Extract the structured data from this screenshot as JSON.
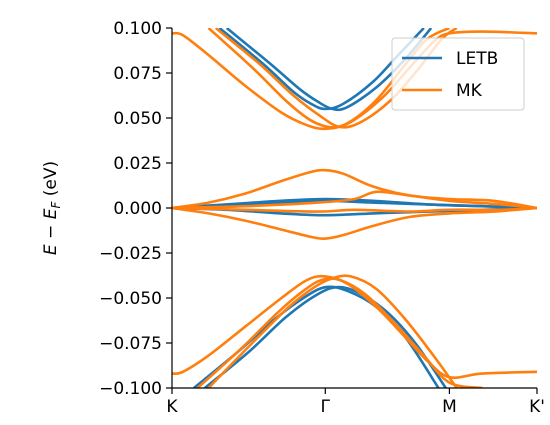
{
  "chart_data": {
    "type": "line",
    "title": "",
    "xlabel": "",
    "ylabel": "E − E_F (eV)",
    "ylabel_main": "E",
    "ylabel_minus": " − ",
    "ylabel_sym": "E",
    "ylabel_sub": "F",
    "ylabel_unit": " (eV)",
    "ylim": [
      -0.1,
      0.1
    ],
    "yticks": [
      0.1,
      0.075,
      0.05,
      0.025,
      0.0,
      -0.025,
      -0.05,
      -0.075,
      -0.1
    ],
    "yticklabels": [
      "0.100",
      "0.075",
      "0.050",
      "0.025",
      "0.000",
      "−0.025",
      "−0.050",
      "−0.075",
      "−0.100"
    ],
    "xlim": [
      0,
      1
    ],
    "xticks": [
      0,
      0.42,
      0.76,
      1.0
    ],
    "xticklabels": [
      "K",
      "Γ",
      "M",
      "K'"
    ],
    "grid": false,
    "legend_position": "top-right",
    "series": [
      {
        "name": "LETB",
        "color": "#1f77b4",
        "lines": [
          [
            [
              0.13,
              0.1
            ],
            [
              0.25,
              0.08
            ],
            [
              0.33,
              0.065
            ],
            [
              0.38,
              0.058
            ],
            [
              0.42,
              0.055
            ],
            [
              0.47,
              0.058
            ],
            [
              0.55,
              0.07
            ],
            [
              0.62,
              0.085
            ],
            [
              0.69,
              0.1
            ]
          ],
          [
            [
              0.15,
              0.1
            ],
            [
              0.27,
              0.08
            ],
            [
              0.35,
              0.066
            ],
            [
              0.4,
              0.059
            ],
            [
              0.44,
              0.055
            ],
            [
              0.48,
              0.056
            ],
            [
              0.56,
              0.067
            ],
            [
              0.64,
              0.083
            ],
            [
              0.71,
              0.1
            ]
          ],
          [
            [
              0.0,
              0.0
            ],
            [
              0.15,
              0.001
            ],
            [
              0.3,
              0.003
            ],
            [
              0.42,
              0.004
            ],
            [
              0.55,
              0.003
            ],
            [
              0.7,
              0.002
            ],
            [
              0.85,
              0.001
            ],
            [
              1.0,
              0.0
            ]
          ],
          [
            [
              0.0,
              0.0
            ],
            [
              0.15,
              0.002
            ],
            [
              0.3,
              0.004
            ],
            [
              0.42,
              0.005
            ],
            [
              0.55,
              0.004
            ],
            [
              0.7,
              0.002
            ],
            [
              0.85,
              0.001
            ],
            [
              1.0,
              0.0
            ]
          ],
          [
            [
              0.0,
              0.0
            ],
            [
              0.15,
              -0.001
            ],
            [
              0.3,
              -0.003
            ],
            [
              0.42,
              -0.004
            ],
            [
              0.55,
              -0.003
            ],
            [
              0.7,
              -0.002
            ],
            [
              0.85,
              -0.001
            ],
            [
              1.0,
              0.0
            ]
          ],
          [
            [
              0.06,
              -0.1
            ],
            [
              0.18,
              -0.08
            ],
            [
              0.28,
              -0.062
            ],
            [
              0.36,
              -0.05
            ],
            [
              0.42,
              -0.044
            ],
            [
              0.48,
              -0.046
            ],
            [
              0.56,
              -0.055
            ],
            [
              0.64,
              -0.072
            ],
            [
              0.73,
              -0.1
            ]
          ],
          [
            [
              0.09,
              -0.1
            ],
            [
              0.21,
              -0.08
            ],
            [
              0.31,
              -0.061
            ],
            [
              0.39,
              -0.049
            ],
            [
              0.45,
              -0.044
            ],
            [
              0.51,
              -0.047
            ],
            [
              0.59,
              -0.058
            ],
            [
              0.67,
              -0.076
            ],
            [
              0.75,
              -0.1
            ]
          ]
        ]
      },
      {
        "name": "MK",
        "color": "#ff7f0e",
        "lines": [
          [
            [
              0.0,
              0.097
            ],
            [
              0.03,
              0.096
            ],
            [
              0.1,
              0.085
            ],
            [
              0.2,
              0.068
            ],
            [
              0.3,
              0.053
            ],
            [
              0.37,
              0.046
            ],
            [
              0.42,
              0.044
            ],
            [
              0.48,
              0.047
            ],
            [
              0.56,
              0.06
            ],
            [
              0.64,
              0.08
            ],
            [
              0.7,
              0.094
            ],
            [
              0.76,
              0.1
            ]
          ],
          [
            [
              0.1,
              0.1
            ],
            [
              0.22,
              0.078
            ],
            [
              0.31,
              0.06
            ],
            [
              0.37,
              0.05
            ],
            [
              0.41,
              0.046
            ],
            [
              0.45,
              0.045
            ],
            [
              0.5,
              0.049
            ],
            [
              0.58,
              0.062
            ],
            [
              0.66,
              0.08
            ],
            [
              0.72,
              0.093
            ],
            [
              0.76,
              0.097
            ],
            [
              0.85,
              0.098
            ],
            [
              1.0,
              0.097
            ]
          ],
          [
            [
              0.12,
              0.1
            ],
            [
              0.24,
              0.08
            ],
            [
              0.33,
              0.063
            ],
            [
              0.4,
              0.052
            ],
            [
              0.46,
              0.045
            ],
            [
              0.52,
              0.048
            ],
            [
              0.6,
              0.06
            ],
            [
              0.67,
              0.076
            ],
            [
              0.74,
              0.094
            ],
            [
              0.78,
              0.1
            ]
          ],
          [
            [
              0.0,
              0.0
            ],
            [
              0.1,
              0.003
            ],
            [
              0.2,
              0.008
            ],
            [
              0.3,
              0.015
            ],
            [
              0.38,
              0.02
            ],
            [
              0.42,
              0.021
            ],
            [
              0.47,
              0.019
            ],
            [
              0.55,
              0.012
            ],
            [
              0.65,
              0.007
            ],
            [
              0.76,
              0.005
            ],
            [
              0.88,
              0.004
            ],
            [
              1.0,
              0.0
            ]
          ],
          [
            [
              0.0,
              0.0
            ],
            [
              0.2,
              0.001
            ],
            [
              0.4,
              0.003
            ],
            [
              0.5,
              0.005
            ],
            [
              0.56,
              0.009
            ],
            [
              0.65,
              0.007
            ],
            [
              0.76,
              0.004
            ],
            [
              0.9,
              0.002
            ],
            [
              1.0,
              0.0
            ]
          ],
          [
            [
              0.0,
              0.0
            ],
            [
              0.2,
              -0.001
            ],
            [
              0.4,
              -0.002
            ],
            [
              0.5,
              -0.001
            ],
            [
              0.65,
              -0.002
            ],
            [
              0.76,
              -0.001
            ],
            [
              0.9,
              -0.001
            ],
            [
              1.0,
              0.0
            ]
          ],
          [
            [
              0.0,
              0.0
            ],
            [
              0.1,
              -0.003
            ],
            [
              0.2,
              -0.007
            ],
            [
              0.3,
              -0.012
            ],
            [
              0.38,
              -0.016
            ],
            [
              0.42,
              -0.017
            ],
            [
              0.47,
              -0.015
            ],
            [
              0.55,
              -0.01
            ],
            [
              0.65,
              -0.005
            ],
            [
              0.76,
              -0.003
            ],
            [
              0.88,
              -0.002
            ],
            [
              1.0,
              0.0
            ]
          ],
          [
            [
              0.0,
              -0.092
            ],
            [
              0.03,
              -0.091
            ],
            [
              0.1,
              -0.082
            ],
            [
              0.2,
              -0.066
            ],
            [
              0.3,
              -0.05
            ],
            [
              0.37,
              -0.04
            ],
            [
              0.42,
              -0.038
            ],
            [
              0.48,
              -0.042
            ],
            [
              0.56,
              -0.055
            ],
            [
              0.64,
              -0.072
            ],
            [
              0.7,
              -0.085
            ],
            [
              0.76,
              -0.094
            ],
            [
              0.85,
              -0.092
            ],
            [
              1.0,
              -0.091
            ]
          ],
          [
            [
              0.07,
              -0.1
            ],
            [
              0.19,
              -0.078
            ],
            [
              0.29,
              -0.058
            ],
            [
              0.36,
              -0.046
            ],
            [
              0.41,
              -0.04
            ],
            [
              0.46,
              -0.04
            ],
            [
              0.53,
              -0.048
            ],
            [
              0.61,
              -0.064
            ],
            [
              0.69,
              -0.082
            ],
            [
              0.76,
              -0.097
            ],
            [
              0.85,
              -0.1
            ]
          ],
          [
            [
              0.1,
              -0.1
            ],
            [
              0.22,
              -0.075
            ],
            [
              0.32,
              -0.055
            ],
            [
              0.39,
              -0.044
            ],
            [
              0.44,
              -0.039
            ],
            [
              0.49,
              -0.038
            ],
            [
              0.56,
              -0.045
            ],
            [
              0.64,
              -0.062
            ],
            [
              0.72,
              -0.083
            ],
            [
              0.78,
              -0.1
            ]
          ]
        ]
      }
    ]
  }
}
